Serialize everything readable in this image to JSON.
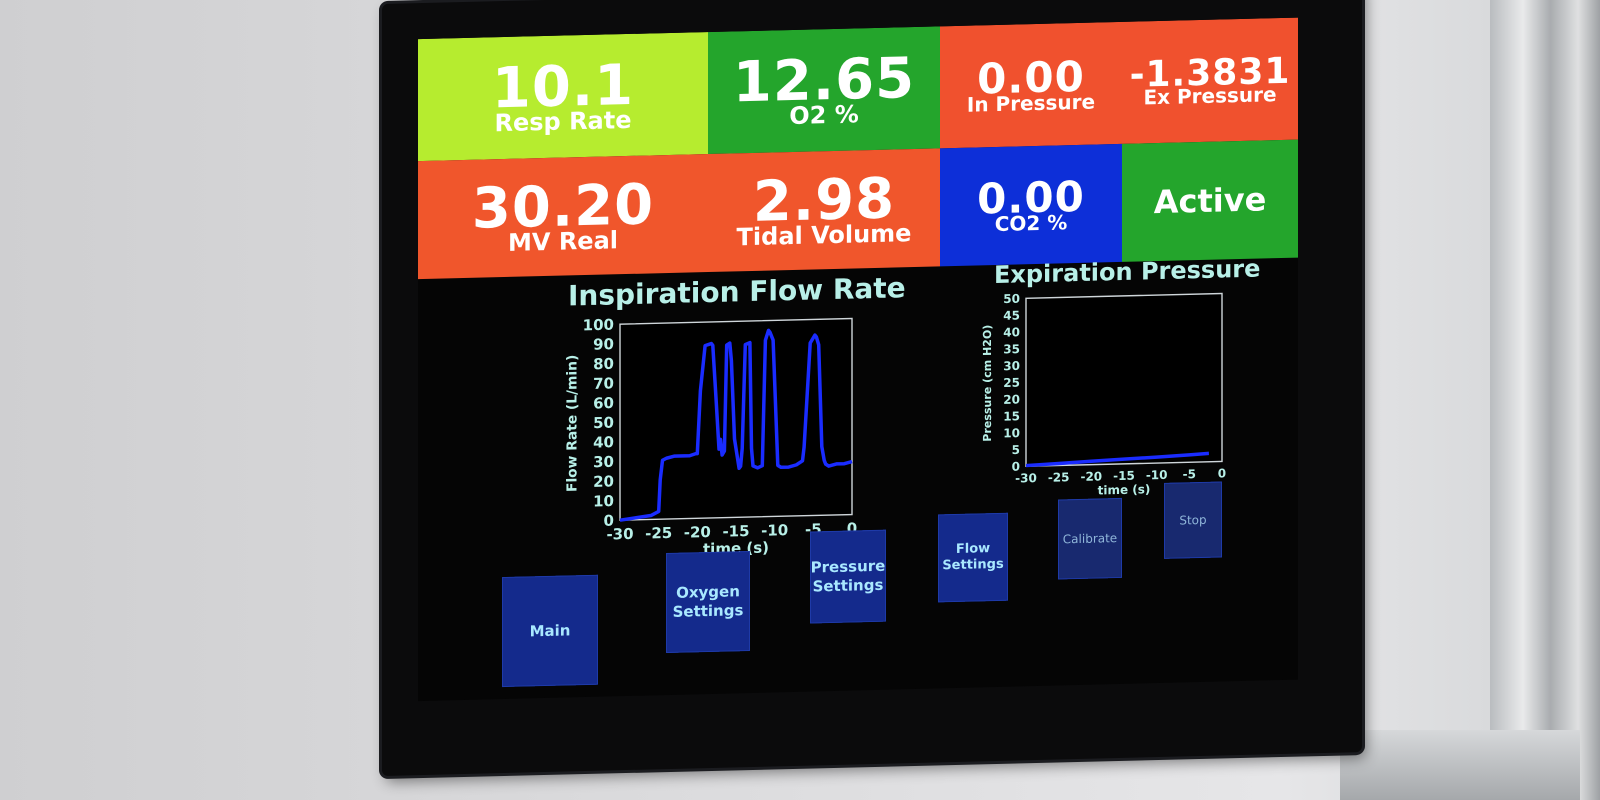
{
  "tiles": {
    "resp_rate": {
      "value": "10.1",
      "label": "Resp Rate",
      "color": "#b6ec2f"
    },
    "o2": {
      "value": "12.65",
      "label": "O2 %",
      "color": "#24a52c"
    },
    "in_pressure": {
      "value": "0.00",
      "label": "In Pressure",
      "color": "#f0512e"
    },
    "ex_pressure": {
      "value": "-1.3831",
      "label": "Ex Pressure",
      "color": "#f0512e"
    },
    "mv_real": {
      "value": "30.20",
      "label": "MV Real",
      "color": "#f0562c"
    },
    "tidal_volume": {
      "value": "2.98",
      "label": "Tidal Volume",
      "color": "#f0562c"
    },
    "co2": {
      "value": "0.00",
      "label": "CO2 %",
      "color": "#0d2fd8"
    },
    "status": {
      "value": "Active",
      "color": "#24a52c"
    }
  },
  "charts": {
    "inspiration": {
      "title": "Inspiration Flow Rate",
      "xlabel": "time (s)",
      "ylabel": "Flow Rate (L/min)",
      "xticks": [
        "-30",
        "-25",
        "-20",
        "-15",
        "-10",
        "-5",
        "0"
      ],
      "yticks": [
        "0",
        "10",
        "20",
        "30",
        "40",
        "50",
        "60",
        "70",
        "80",
        "90",
        "100"
      ]
    },
    "expiration": {
      "title": "Expiration Pressure",
      "xlabel": "time (s)",
      "ylabel": "Pressure (cm H2O)",
      "xticks": [
        "-30",
        "-25",
        "-20",
        "-15",
        "-10",
        "-5",
        "0"
      ],
      "yticks": [
        "0",
        "5",
        "10",
        "15",
        "20",
        "25",
        "30",
        "35",
        "40",
        "45",
        "50"
      ]
    }
  },
  "chart_data": [
    {
      "type": "line",
      "title": "Inspiration Flow Rate",
      "xlabel": "time (s)",
      "ylabel": "Flow Rate (L/min)",
      "xlim": [
        -30,
        0
      ],
      "ylim": [
        0,
        100
      ],
      "line_color": "#1a2cff",
      "series": [
        {
          "x": [
            -30,
            -26,
            -25,
            -24.8,
            -24.5,
            -24,
            -23,
            -21,
            -20.2,
            -20,
            -19.6,
            -19,
            -18.2,
            -18,
            -17.6,
            -17.2,
            -17,
            -16.8,
            -16.5,
            -16.2,
            -15.8,
            -15.6,
            -15.2,
            -14.6,
            -14.4,
            -14.2,
            -13.8,
            -13.2,
            -13,
            -12.8,
            -12.2,
            -11.6,
            -11.2,
            -10.8,
            -10.6,
            -10.2,
            -9.6,
            -9.2,
            -8.2,
            -7.2,
            -6.4,
            -6.2,
            -5.4,
            -4.8,
            -4.6,
            -4.3,
            -3.9,
            -3.6,
            -3.4,
            -3,
            -2,
            -1,
            0
          ],
          "y": [
            0,
            2,
            4,
            20,
            30,
            31,
            32,
            32,
            33,
            33,
            65,
            88,
            89,
            88,
            62,
            35,
            40,
            32,
            34,
            88,
            89,
            80,
            40,
            25,
            26,
            35,
            88,
            89,
            35,
            26,
            25,
            26,
            90,
            95,
            94,
            90,
            26,
            25,
            25,
            26,
            28,
            35,
            88,
            92,
            91,
            87,
            35,
            28,
            26,
            25,
            26,
            26,
            27
          ]
        }
      ]
    },
    {
      "type": "line",
      "title": "Expiration Pressure",
      "xlabel": "time (s)",
      "ylabel": "Pressure (cm H2O)",
      "xlim": [
        -30,
        0
      ],
      "ylim": [
        0,
        50
      ],
      "line_color": "#1a2cff",
      "series": [
        {
          "x": [
            -30,
            -25,
            -20,
            -15,
            -10,
            -5,
            -2
          ],
          "y": [
            0.2,
            0.6,
            1.0,
            1.4,
            1.8,
            2.2,
            2.5
          ]
        }
      ]
    }
  ],
  "buttons": {
    "main": "Main",
    "oxygen_settings": "Oxygen\nSettings",
    "pressure_settings": "Pressure\nSettings",
    "flow_settings": "Flow\nSettings",
    "calibrate": "Calibrate",
    "stop": "Stop"
  }
}
